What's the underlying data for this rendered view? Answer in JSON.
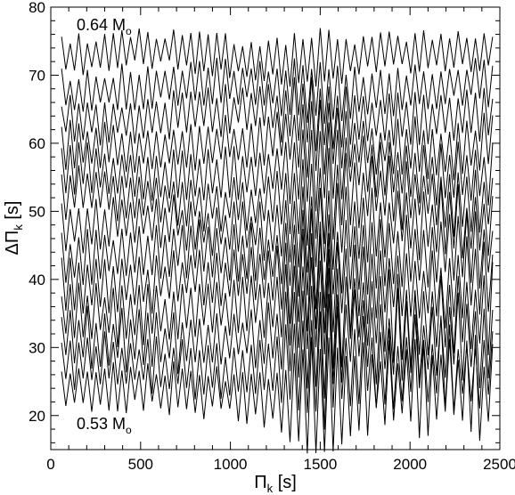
{
  "chart_data": {
    "type": "line",
    "xlabel": "Π",
    "xlabel_sub": "k",
    "xlabel_unit": " [s]",
    "ylabel": "ΔΠ",
    "ylabel_sub": "k",
    "ylabel_unit": " [s]",
    "xlim": [
      0,
      2500
    ],
    "ylim": [
      15,
      80
    ],
    "xticks": [
      0,
      500,
      1000,
      1500,
      2000,
      2500
    ],
    "yticks": [
      20,
      30,
      40,
      50,
      60,
      70,
      80
    ],
    "grid": false,
    "legend": "none",
    "annotations": [
      {
        "text": "0.64 M",
        "sub": "o",
        "at": [
          120,
          77
        ]
      },
      {
        "text": "0.53 M",
        "sub": "o",
        "at": [
          120,
          18
        ]
      }
    ],
    "series_note": "13 offset period-spacing curves from 0.53 Mo (bottom) to 0.64 Mo (top); baseline mean ΔΠ and oscillation amplitude listed per series",
    "series": [
      {
        "mean": 23.5,
        "amplitude": 3.0
      },
      {
        "mean": 27.3,
        "amplitude": 3.2
      },
      {
        "mean": 31.4,
        "amplitude": 3.4
      },
      {
        "mean": 35.5,
        "amplitude": 3.4
      },
      {
        "mean": 39.6,
        "amplitude": 3.3
      },
      {
        "mean": 43.7,
        "amplitude": 3.2
      },
      {
        "mean": 47.8,
        "amplitude": 3.1
      },
      {
        "mean": 51.8,
        "amplitude": 3.0
      },
      {
        "mean": 55.9,
        "amplitude": 3.0
      },
      {
        "mean": 60.0,
        "amplitude": 2.9
      },
      {
        "mean": 64.1,
        "amplitude": 2.8
      },
      {
        "mean": 68.2,
        "amplitude": 2.6
      },
      {
        "mean": 72.9,
        "amplitude": 2.4
      }
    ],
    "series_x_start": 60,
    "series_x_end": 2460,
    "series_point_spacing": 24
  }
}
